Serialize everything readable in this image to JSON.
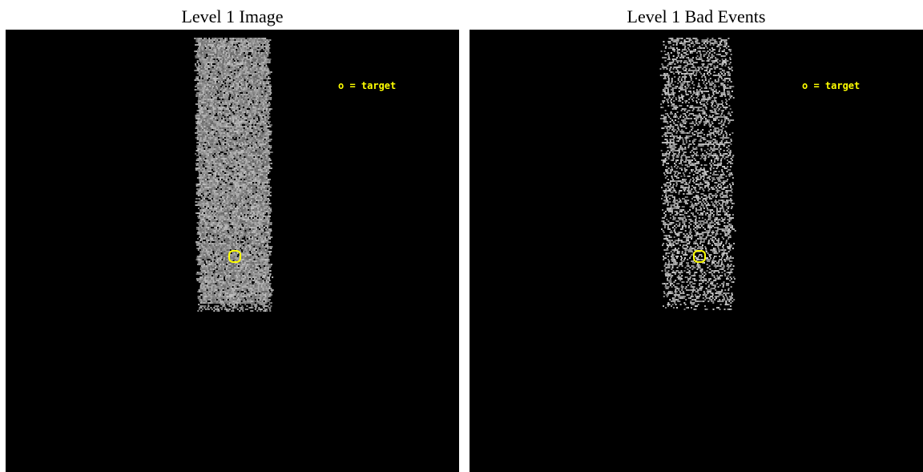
{
  "panels": [
    {
      "title": "Level 1 Image",
      "legend": "o = target",
      "colors": {
        "background": "#000000",
        "counts": "#9a9a9a",
        "target": "#ffff00"
      }
    },
    {
      "title": "Level 1 Bad Events",
      "legend": "o = target",
      "colors": {
        "background": "#000000",
        "counts": "#a8a8a8",
        "target": "#ffff00"
      }
    }
  ]
}
